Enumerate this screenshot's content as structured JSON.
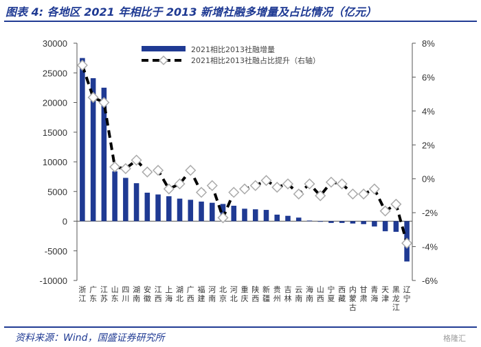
{
  "title": "图表 4: 各地区 2021 年相比于 2013 新增社融多增量及占比情况（亿元）",
  "source": "资料来源：Wind，国盛证券研究所",
  "watermark": "格隆汇",
  "colors": {
    "bar": "#1f3a93",
    "line": "#000000",
    "marker_fill": "#ffffff",
    "marker_stroke": "#aaaaaa",
    "title": "#1f3a93"
  },
  "chart_data": {
    "type": "bar",
    "title": "图表 4: 各地区 2021 年相比于 2013 新增社融多增量及占比情况（亿元）",
    "categories": [
      "浙江",
      "广东",
      "江苏",
      "山东",
      "四川",
      "湖南",
      "安徽",
      "江西",
      "上海",
      "湖北",
      "广西",
      "福建",
      "河南",
      "北京",
      "河北",
      "重庆",
      "陕西",
      "新疆",
      "贵州",
      "吉林",
      "云南",
      "海南",
      "山西",
      "宁夏",
      "西藏",
      "内蒙古",
      "甘肃",
      "青海",
      "天津",
      "黑龙江",
      "辽宁"
    ],
    "series": [
      {
        "name": "2021相比2013社融增量",
        "axis": "left",
        "type": "bar",
        "values": [
          27500,
          24100,
          22500,
          8400,
          7300,
          6400,
          4800,
          4500,
          4200,
          3800,
          3600,
          3300,
          3100,
          2900,
          2600,
          2100,
          2000,
          1900,
          1100,
          900,
          600,
          100,
          -100,
          -300,
          -300,
          -400,
          -500,
          -900,
          -1700,
          -1800,
          -6800
        ]
      },
      {
        "name": "2021相比2013社融占比提升（右轴）",
        "axis": "right",
        "type": "line",
        "values": [
          6.7,
          4.8,
          4.5,
          0.7,
          0.6,
          1.1,
          0.4,
          0.5,
          -0.6,
          -0.3,
          0.5,
          -0.8,
          -0.4,
          -2.3,
          -0.8,
          -0.6,
          -0.4,
          -0.1,
          -0.5,
          -0.3,
          -0.9,
          -0.3,
          -1.0,
          -0.2,
          -0.3,
          -0.9,
          -0.9,
          -0.6,
          -1.9,
          -1.5,
          -3.8
        ]
      }
    ],
    "ylim_left": [
      -10000,
      30000
    ],
    "yticks_left": [
      "30000",
      "25000",
      "20000",
      "15000",
      "10000",
      "5000",
      "0",
      "-5000",
      "-10000"
    ],
    "ylim_right": [
      -6,
      8
    ],
    "yticks_right": [
      "8%",
      "6%",
      "4%",
      "2%",
      "0%",
      "-2%",
      "-4%",
      "-6%"
    ],
    "legend_position": "top-center",
    "grid": false
  }
}
